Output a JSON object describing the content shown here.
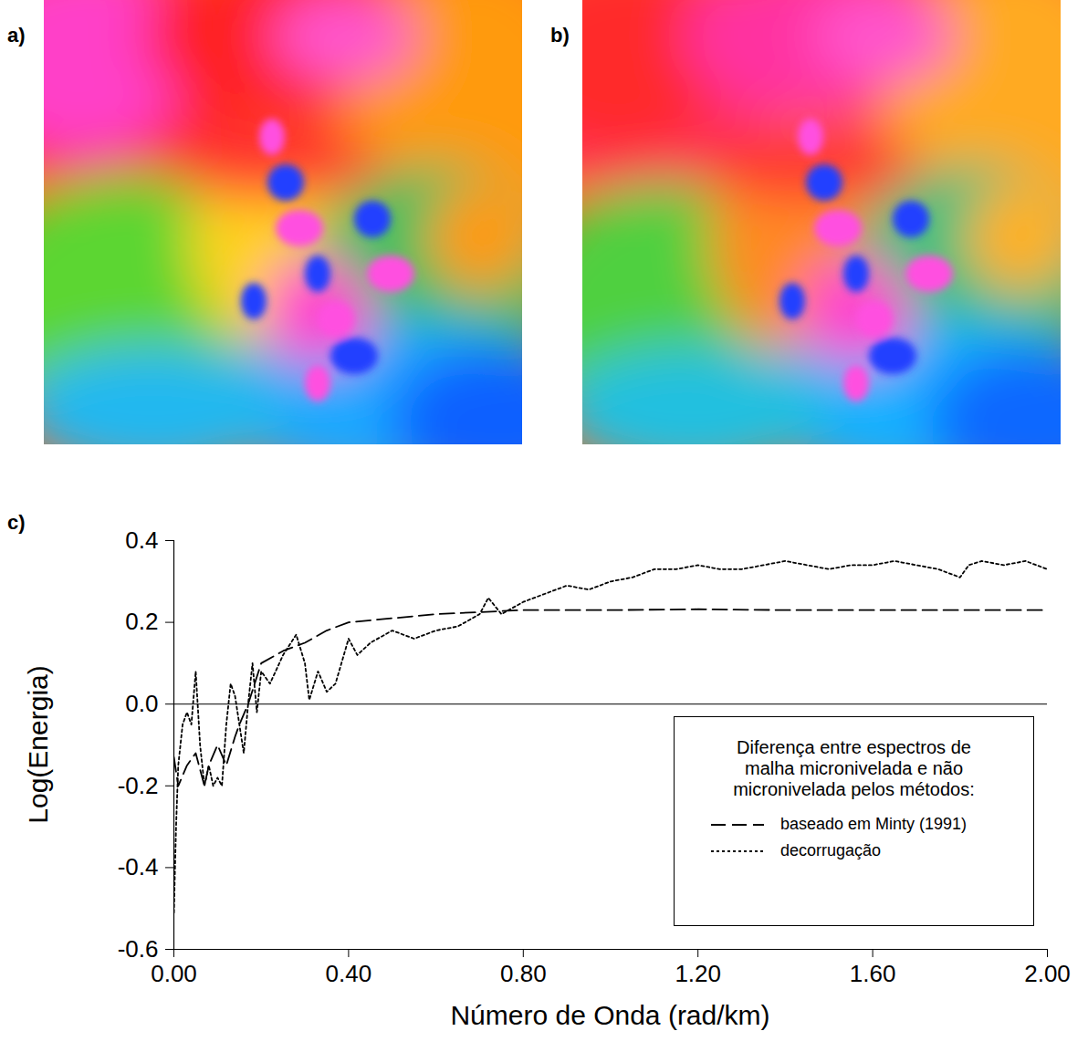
{
  "maps": [
    {
      "label": "a)"
    },
    {
      "label": "b)"
    }
  ],
  "chart_data": {
    "type": "line",
    "label": "c)",
    "x_label": "Número de Onda (rad/km)",
    "y_label": "Log(Energia)",
    "xlim": [
      0,
      2
    ],
    "xticks": [
      {
        "value": 0,
        "label": "0.00"
      },
      {
        "value": 0.4,
        "label": "0.40"
      },
      {
        "value": 0.8,
        "label": "0.80"
      },
      {
        "value": 1.2,
        "label": "1.20"
      },
      {
        "value": 1.6,
        "label": "1.60"
      },
      {
        "value": 2,
        "label": "2.00"
      }
    ],
    "ylim": [
      -0.6,
      0.4
    ],
    "yticks": [
      -0.6,
      -0.4,
      -0.2,
      {
        "value": 0,
        "label": "0.0"
      },
      0.2,
      0.4
    ],
    "legend_title": "Diferença entre espectros de malha micronivelada e não micronivelada pelos métodos:",
    "legend": "lower right",
    "series": [
      {
        "name": "baseado em Minty (1991)",
        "color": "#000000",
        "line_style": "dashed",
        "x": [
          0,
          0.01,
          0.03,
          0.05,
          0.07,
          0.08,
          0.1,
          0.12,
          0.14,
          0.15,
          0.17,
          0.2,
          0.25,
          0.3,
          0.35,
          0.4,
          0.5,
          0.6,
          0.7,
          0.8,
          0.9,
          1.0,
          1.2,
          1.4,
          1.6,
          1.8,
          2.0
        ],
        "values": [
          -0.13,
          -0.2,
          -0.15,
          -0.12,
          -0.2,
          -0.15,
          -0.1,
          -0.15,
          -0.08,
          -0.05,
          0.0,
          0.1,
          0.13,
          0.15,
          0.18,
          0.2,
          0.21,
          0.22,
          0.225,
          0.23,
          0.23,
          0.23,
          0.232,
          0.23,
          0.23,
          0.23,
          0.23
        ]
      },
      {
        "name": "decorrugação",
        "color": "#000000",
        "line_style": "dotted",
        "x": [
          0,
          0.005,
          0.01,
          0.02,
          0.03,
          0.04,
          0.05,
          0.06,
          0.07,
          0.08,
          0.09,
          0.1,
          0.11,
          0.12,
          0.13,
          0.14,
          0.15,
          0.16,
          0.17,
          0.18,
          0.19,
          0.2,
          0.22,
          0.25,
          0.28,
          0.3,
          0.31,
          0.33,
          0.35,
          0.37,
          0.4,
          0.42,
          0.45,
          0.5,
          0.55,
          0.6,
          0.65,
          0.7,
          0.72,
          0.75,
          0.8,
          0.85,
          0.9,
          0.95,
          1.0,
          1.05,
          1.1,
          1.15,
          1.2,
          1.25,
          1.3,
          1.35,
          1.4,
          1.45,
          1.5,
          1.55,
          1.6,
          1.65,
          1.7,
          1.75,
          1.8,
          1.82,
          1.85,
          1.9,
          1.95,
          2.0
        ],
        "values": [
          -0.51,
          -0.3,
          -0.15,
          -0.05,
          -0.02,
          -0.05,
          0.08,
          -0.1,
          -0.2,
          -0.15,
          -0.2,
          -0.18,
          -0.2,
          -0.05,
          0.05,
          0.02,
          -0.05,
          -0.12,
          0.0,
          0.1,
          -0.02,
          0.08,
          0.05,
          0.12,
          0.17,
          0.1,
          0.01,
          0.08,
          0.03,
          0.05,
          0.16,
          0.12,
          0.15,
          0.18,
          0.16,
          0.18,
          0.19,
          0.22,
          0.26,
          0.22,
          0.25,
          0.27,
          0.29,
          0.28,
          0.3,
          0.31,
          0.33,
          0.33,
          0.34,
          0.33,
          0.33,
          0.34,
          0.35,
          0.34,
          0.33,
          0.34,
          0.34,
          0.35,
          0.34,
          0.33,
          0.31,
          0.34,
          0.35,
          0.34,
          0.35,
          0.33
        ]
      }
    ]
  }
}
